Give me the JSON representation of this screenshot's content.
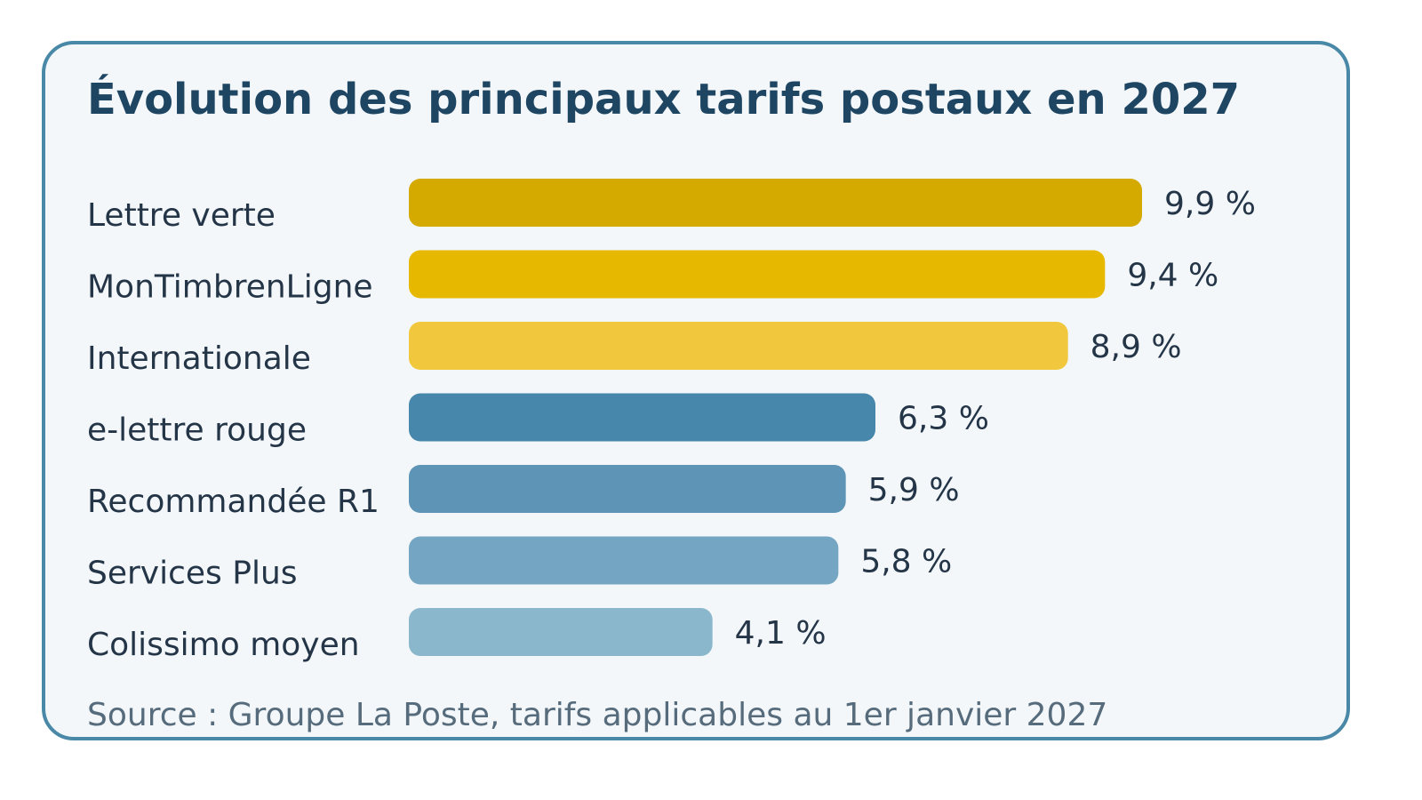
{
  "chart_data": {
    "type": "bar",
    "orientation": "horizontal",
    "title": "Évolution des principaux tarifs postaux en 2027",
    "categories": [
      "Lettre verte",
      "MonTimbrenLigne",
      "Internationale",
      "e-lettre rouge",
      "Recommandée R1",
      "Services Plus",
      "Colissimo moyen"
    ],
    "values": [
      9.9,
      9.4,
      8.9,
      6.3,
      5.9,
      5.8,
      4.1
    ],
    "value_labels": [
      "9,9 %",
      "9,4 %",
      "8,9 %",
      "6,3 %",
      "5,9 %",
      "5,8 %",
      "4,1 %"
    ],
    "colors": [
      "#d4a900",
      "#e6b900",
      "#f1c83d",
      "#4687ab",
      "#5e95b7",
      "#74a6c3",
      "#8bb7cd"
    ],
    "xlim": [
      0,
      9.9
    ],
    "grid": false,
    "legend": "none",
    "source": "Source : Groupe La Poste, tarifs applicables au 1er janvier 2027"
  }
}
